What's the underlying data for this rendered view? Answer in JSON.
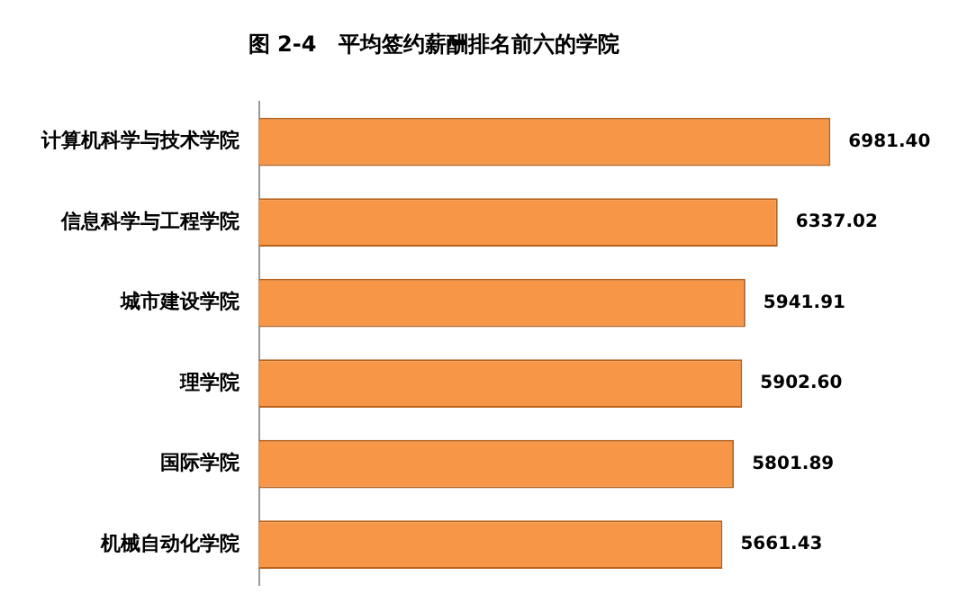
{
  "chart_data": {
    "type": "bar",
    "orientation": "horizontal",
    "title": "图 2-4   平均签约薪酬排名前六的学院",
    "categories": [
      "计算机科学与技术学院",
      "信息科学与工程学院",
      "城市建设学院",
      "理学院",
      "国际学院",
      "机械自动化学院"
    ],
    "values": [
      6981.4,
      6337.02,
      5941.91,
      5902.6,
      5801.89,
      5661.43
    ],
    "value_labels": [
      "6981.40",
      "6337.02",
      "5941.91",
      "5902.60",
      "5801.89",
      "5661.43"
    ],
    "color": "#f79646",
    "tick_labels": "y"
  }
}
